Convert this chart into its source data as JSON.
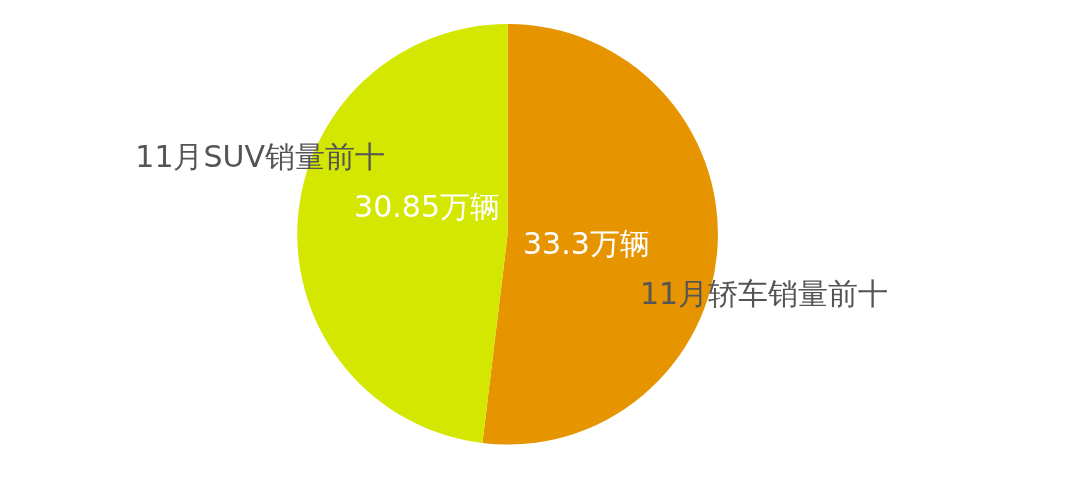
{
  "chart_data": {
    "type": "pie",
    "categories": [
      "11月轿车销量前十",
      "11月SUV销量前十"
    ],
    "values": [
      33.3,
      30.85
    ],
    "colors": [
      "#e69500",
      "#d4e700"
    ],
    "value_labels": [
      "33.3万辆",
      "30.85万辆"
    ]
  }
}
